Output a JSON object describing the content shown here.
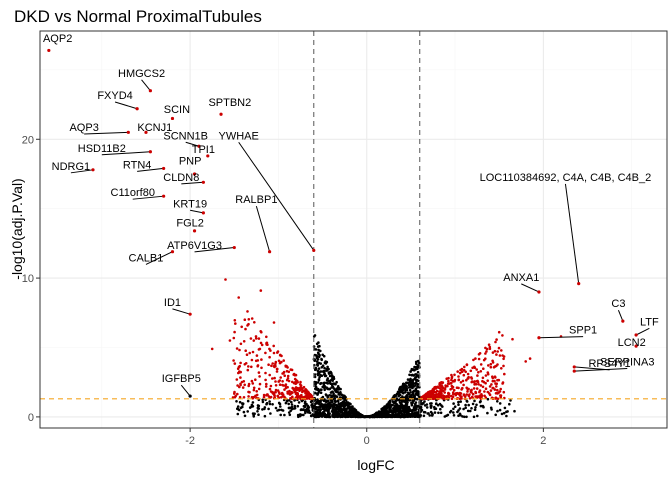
{
  "chart_data": {
    "type": "scatter",
    "title": "DKD vs Normal ProximalTubules",
    "xlabel": "logFC",
    "ylabel": "-log10(adj.P.Val)",
    "xlim": [
      -3.7,
      3.4
    ],
    "ylim": [
      -0.8,
      27.8
    ],
    "x_ticks": [
      -2,
      0,
      2
    ],
    "y_ticks": [
      0,
      10,
      20
    ],
    "grid": true,
    "legend": "none",
    "logfc_thresholds": [
      -0.6,
      0.6
    ],
    "pvalue_threshold": 1.3,
    "colors": {
      "significant": "#cc0000",
      "not_significant": "#000000",
      "logfc_line": "#666666",
      "pvalue_line": "#f5a623",
      "grid_major": "#ebebeb",
      "grid_minor": "#f5f5f5",
      "panel_border": "#333333"
    },
    "labeled_points": [
      {
        "gene": "AQP2",
        "x": -3.6,
        "y": 26.4,
        "lx": -3.5,
        "ly": 27.0
      },
      {
        "gene": "HMGCS2",
        "x": -2.45,
        "y": 23.5,
        "lx": -2.55,
        "ly": 24.5
      },
      {
        "gene": "FXYD4",
        "x": -2.6,
        "y": 22.2,
        "lx": -2.85,
        "ly": 22.9
      },
      {
        "gene": "SCIN",
        "x": -2.2,
        "y": 21.5,
        "lx": -2.15,
        "ly": 21.9
      },
      {
        "gene": "SPTBN2",
        "x": -1.65,
        "y": 21.8,
        "lx": -1.55,
        "ly": 22.4
      },
      {
        "gene": "AQP3",
        "x": -2.7,
        "y": 20.5,
        "lx": -3.2,
        "ly": 20.6
      },
      {
        "gene": "KCNJ1",
        "x": -2.5,
        "y": 20.5,
        "lx": -2.4,
        "ly": 20.6
      },
      {
        "gene": "SCNN1B",
        "x": -1.9,
        "y": 19.5,
        "lx": -2.05,
        "ly": 20.0
      },
      {
        "gene": "YWHAE",
        "x": -0.6,
        "y": 12.0,
        "lx": -1.45,
        "ly": 20.0
      },
      {
        "gene": "TPI1",
        "x": -1.8,
        "y": 18.8,
        "lx": -1.85,
        "ly": 19.0
      },
      {
        "gene": "HSD11B2",
        "x": -2.45,
        "y": 19.1,
        "lx": -3.0,
        "ly": 19.1
      },
      {
        "gene": "PNP",
        "x": -1.95,
        "y": 17.5,
        "lx": -2.0,
        "ly": 18.2
      },
      {
        "gene": "RTN4",
        "x": -2.3,
        "y": 17.9,
        "lx": -2.6,
        "ly": 17.9
      },
      {
        "gene": "NDRG1",
        "x": -3.1,
        "y": 17.8,
        "lx": -3.35,
        "ly": 17.8
      },
      {
        "gene": "CLDN8",
        "x": -1.85,
        "y": 16.9,
        "lx": -2.1,
        "ly": 17.0
      },
      {
        "gene": "LOC110384692, C4A, C4B, C4B_2",
        "x": 2.4,
        "y": 9.6,
        "lx": 2.25,
        "ly": 17.0
      },
      {
        "gene": "C11orf80",
        "x": -2.3,
        "y": 15.9,
        "lx": -2.65,
        "ly": 15.9
      },
      {
        "gene": "RALBP1",
        "x": -1.1,
        "y": 11.9,
        "lx": -1.25,
        "ly": 15.4
      },
      {
        "gene": "KRT19",
        "x": -1.85,
        "y": 14.7,
        "lx": -2.0,
        "ly": 15.1
      },
      {
        "gene": "FGL2",
        "x": -1.95,
        "y": 13.4,
        "lx": -2.0,
        "ly": 13.7
      },
      {
        "gene": "ATP6V1G3",
        "x": -1.5,
        "y": 12.2,
        "lx": -1.95,
        "ly": 12.1
      },
      {
        "gene": "CALB1",
        "x": -2.2,
        "y": 11.9,
        "lx": -2.5,
        "ly": 11.2
      },
      {
        "gene": "ANXA1",
        "x": 1.95,
        "y": 9.0,
        "lx": 1.75,
        "ly": 9.8
      },
      {
        "gene": "ID1",
        "x": -2.0,
        "y": 7.4,
        "lx": -2.2,
        "ly": 8.0
      },
      {
        "gene": "C3",
        "x": 2.9,
        "y": 6.9,
        "lx": 2.85,
        "ly": 7.9
      },
      {
        "gene": "LTF",
        "x": 3.05,
        "y": 5.9,
        "lx": 3.2,
        "ly": 6.6
      },
      {
        "gene": "SPP1",
        "x": 1.95,
        "y": 5.7,
        "lx": 2.45,
        "ly": 6.0
      },
      {
        "gene": "LCN2",
        "x": 3.05,
        "y": 5.1,
        "lx": 3.0,
        "ly": 5.1
      },
      {
        "gene": "RPS4Y1",
        "x": 2.35,
        "y": 3.6,
        "lx": 2.75,
        "ly": 3.6
      },
      {
        "gene": "SERPINA3",
        "x": 2.35,
        "y": 3.3,
        "lx": 2.95,
        "ly": 3.7
      },
      {
        "gene": "IGFBP5",
        "x": -2.0,
        "y": 1.5,
        "lx": -2.1,
        "ly": 2.5
      }
    ]
  }
}
